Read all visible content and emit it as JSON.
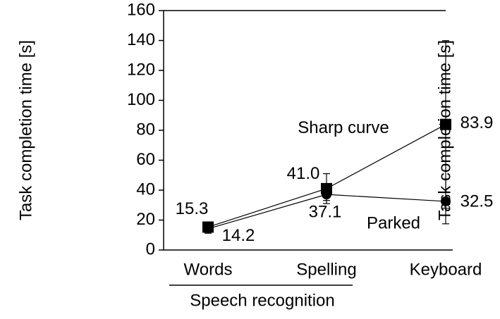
{
  "chart_data": {
    "type": "line",
    "ylabel": "Task completion time [s]",
    "y2label": "Task completion time [s]",
    "categories": [
      "Words",
      "Spelling",
      "Keyboard"
    ],
    "group_label": "Speech recognition",
    "ylim": [
      0,
      160
    ],
    "yticks": [
      0,
      20,
      40,
      60,
      80,
      100,
      120,
      140,
      160
    ],
    "series": [
      {
        "name": "Sharp curve",
        "color": "#000000",
        "marker": "square",
        "values": [
          15.3,
          41.0,
          83.9
        ],
        "value_labels": [
          "15.3",
          "41.0",
          "83.9"
        ],
        "errors": [
          3,
          10,
          56
        ]
      },
      {
        "name": "Parked",
        "color": "#000000",
        "marker": "circle",
        "values": [
          14.2,
          37.1,
          32.5
        ],
        "value_labels": [
          "14.2",
          "37.1",
          "32.5"
        ],
        "errors": [
          3,
          4,
          15
        ]
      }
    ]
  }
}
